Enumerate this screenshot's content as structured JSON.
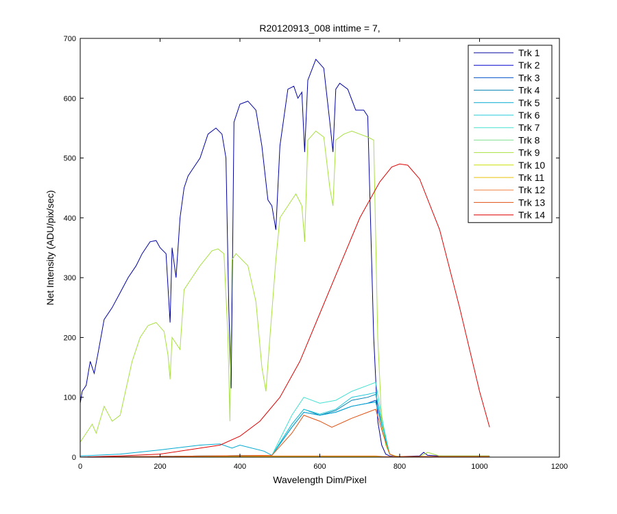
{
  "chart_data": {
    "type": "line",
    "title": "R20120913_008 inttime = 7,",
    "xlabel": "Wavelength Dim/Pixel",
    "ylabel": "Net Intensity (ADU/pix/sec)",
    "xlim": [
      0,
      1200
    ],
    "ylim": [
      0,
      700
    ],
    "xticks": [
      0,
      200,
      400,
      600,
      800,
      1000,
      1200
    ],
    "yticks": [
      0,
      100,
      200,
      300,
      400,
      500,
      600,
      700
    ],
    "grid": false,
    "legend_position": "top-right",
    "series": [
      {
        "name": "Trk 1",
        "color": "#0000a0",
        "x": [
          0,
          5,
          15,
          25,
          35,
          45,
          60,
          80,
          100,
          120,
          140,
          155,
          165,
          175,
          190,
          200,
          215,
          225,
          230,
          240,
          250,
          260,
          270,
          280,
          300,
          320,
          340,
          355,
          365,
          372,
          378,
          385,
          400,
          420,
          440,
          455,
          470,
          480,
          490,
          500,
          520,
          535,
          545,
          555,
          562,
          570,
          590,
          610,
          625,
          633,
          640,
          650,
          670,
          690,
          710,
          720,
          735,
          745,
          755,
          765,
          775,
          790,
          800,
          850,
          860,
          870,
          900,
          1025
        ],
        "y": [
          90,
          110,
          120,
          160,
          140,
          175,
          230,
          250,
          275,
          300,
          320,
          340,
          350,
          360,
          362,
          350,
          340,
          225,
          350,
          300,
          400,
          450,
          470,
          480,
          500,
          540,
          550,
          540,
          500,
          250,
          115,
          560,
          590,
          595,
          580,
          520,
          430,
          420,
          380,
          520,
          615,
          620,
          600,
          610,
          510,
          630,
          665,
          650,
          560,
          510,
          615,
          625,
          615,
          580,
          580,
          570,
          200,
          60,
          20,
          5,
          2,
          1,
          1,
          2,
          8,
          3,
          2,
          2
        ]
      },
      {
        "name": "Trk 2",
        "color": "#0000cd",
        "x": [
          0,
          380,
          480,
          740,
          760,
          1025
        ],
        "y": [
          0,
          1,
          1,
          1,
          0,
          0
        ]
      },
      {
        "name": "Trk 3",
        "color": "#0050c8",
        "x": [
          0,
          480,
          530,
          560,
          600,
          640,
          680,
          720,
          740,
          760,
          775,
          790,
          1025
        ],
        "y": [
          0,
          3,
          50,
          75,
          70,
          75,
          85,
          90,
          95,
          40,
          5,
          1,
          1
        ]
      },
      {
        "name": "Trk 4",
        "color": "#0080b0",
        "x": [
          0,
          480,
          530,
          560,
          600,
          640,
          680,
          720,
          740,
          760,
          775,
          790,
          1025
        ],
        "y": [
          0,
          3,
          55,
          80,
          70,
          78,
          95,
          100,
          105,
          45,
          5,
          1,
          1
        ]
      },
      {
        "name": "Trk 5",
        "color": "#00a8d0",
        "x": [
          0,
          100,
          200,
          300,
          350,
          380,
          400,
          460,
          480,
          530,
          560,
          600,
          640,
          680,
          720,
          740,
          760,
          775,
          790,
          1025
        ],
        "y": [
          2,
          5,
          12,
          20,
          22,
          15,
          20,
          10,
          3,
          50,
          75,
          70,
          75,
          85,
          90,
          92,
          40,
          5,
          1,
          1
        ]
      },
      {
        "name": "Trk 6",
        "color": "#20c8d8",
        "x": [
          0,
          480,
          530,
          560,
          600,
          640,
          680,
          720,
          740,
          760,
          775,
          790,
          1025
        ],
        "y": [
          0,
          3,
          55,
          80,
          72,
          80,
          100,
          105,
          108,
          45,
          5,
          1,
          1
        ]
      },
      {
        "name": "Trk 7",
        "color": "#40e0d0",
        "x": [
          0,
          480,
          530,
          560,
          600,
          640,
          680,
          720,
          740,
          760,
          775,
          790,
          1025
        ],
        "y": [
          0,
          3,
          70,
          100,
          90,
          95,
          110,
          120,
          125,
          50,
          5,
          1,
          1
        ]
      },
      {
        "name": "Trk 8",
        "color": "#80e090",
        "x": [
          0,
          480,
          740,
          760,
          1025
        ],
        "y": [
          0,
          1,
          1,
          0,
          0
        ]
      },
      {
        "name": "Trk 9",
        "color": "#a8e040",
        "x": [
          0,
          10,
          30,
          40,
          60,
          80,
          100,
          130,
          150,
          170,
          190,
          210,
          220,
          225,
          230,
          250,
          260,
          280,
          300,
          330,
          345,
          360,
          370,
          375,
          380,
          390,
          420,
          440,
          455,
          465,
          475,
          490,
          500,
          520,
          540,
          555,
          562,
          570,
          590,
          610,
          625,
          633,
          640,
          660,
          680,
          700,
          720,
          735,
          745,
          755,
          765,
          775,
          790,
          800,
          850,
          870,
          900,
          1025
        ],
        "y": [
          25,
          35,
          55,
          40,
          85,
          60,
          70,
          160,
          200,
          220,
          225,
          210,
          170,
          130,
          200,
          180,
          280,
          300,
          320,
          345,
          348,
          340,
          200,
          60,
          330,
          340,
          320,
          260,
          150,
          110,
          200,
          330,
          400,
          420,
          440,
          420,
          360,
          530,
          545,
          535,
          450,
          420,
          530,
          540,
          545,
          540,
          535,
          530,
          200,
          60,
          20,
          5,
          2,
          1,
          1,
          8,
          2,
          2
        ]
      },
      {
        "name": "Trk 10",
        "color": "#c8e000",
        "x": [
          0,
          480,
          740,
          760,
          1025
        ],
        "y": [
          0,
          1,
          1,
          0,
          0
        ]
      },
      {
        "name": "Trk 11",
        "color": "#e8c000",
        "x": [
          0,
          480,
          740,
          760,
          1025
        ],
        "y": [
          0,
          1,
          1,
          0,
          0
        ]
      },
      {
        "name": "Trk 12",
        "color": "#f08040",
        "x": [
          0,
          380,
          480,
          740,
          760,
          1025
        ],
        "y": [
          0,
          2,
          2,
          2,
          1,
          1
        ]
      },
      {
        "name": "Trk 13",
        "color": "#e05010",
        "x": [
          0,
          480,
          530,
          560,
          600,
          630,
          680,
          720,
          740,
          760,
          775,
          790,
          1025
        ],
        "y": [
          0,
          3,
          40,
          70,
          60,
          50,
          65,
          75,
          80,
          35,
          5,
          1,
          1
        ]
      },
      {
        "name": "Trk 14",
        "color": "#e00000",
        "x": [
          0,
          100,
          200,
          250,
          300,
          350,
          400,
          450,
          500,
          550,
          600,
          650,
          700,
          750,
          780,
          800,
          820,
          850,
          900,
          950,
          1000,
          1025
        ],
        "y": [
          0,
          2,
          5,
          10,
          15,
          20,
          35,
          60,
          100,
          160,
          240,
          320,
          400,
          460,
          485,
          490,
          488,
          465,
          380,
          250,
          110,
          50
        ]
      }
    ]
  }
}
